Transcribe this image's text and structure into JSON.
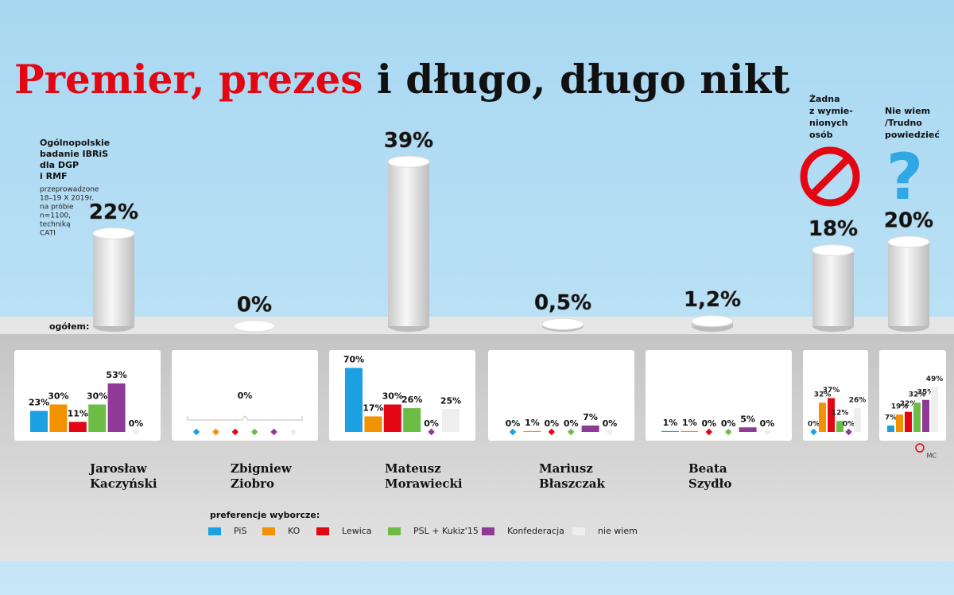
{
  "chart_data": {
    "type": "cylinder-breakdown",
    "title_red": "Premier, prezes",
    "title_black": "i długo, długo nikt",
    "note_bold": [
      "Ogólnopolskie",
      "badanie IBRiS",
      "dla DGP",
      "i RMF"
    ],
    "note_small": [
      "przeprowadzone",
      "18–19 X 2019r.",
      "na próbie",
      "n=1100,",
      "techniką",
      "CATI"
    ],
    "overall_label": "ogółem:",
    "series": [
      {
        "name": "PiS",
        "color": "#1ba1e2"
      },
      {
        "name": "KO",
        "color": "#f39200"
      },
      {
        "name": "Lewica",
        "color": "#e30613"
      },
      {
        "name": "PSL + Kukiz'15",
        "color": "#6cbd45"
      },
      {
        "name": "Konfederacja",
        "color": "#8e3a96"
      },
      {
        "name": "nie wiem",
        "color": "#eeeeee"
      }
    ],
    "legend_title": "preferencje wyborcze:",
    "candidates": [
      {
        "name_lines": [
          "Jarosław",
          "Kaczyński"
        ],
        "overall": 22,
        "overall_label": "22%",
        "values": [
          23,
          30,
          11,
          30,
          53,
          0
        ],
        "value_labels": [
          "23%",
          "30%",
          "11%",
          "30%",
          "53%",
          "0%"
        ]
      },
      {
        "name_lines": [
          "Zbigniew",
          "Ziobro"
        ],
        "overall": 0,
        "overall_label": "0%",
        "values": [
          0,
          0,
          0,
          0,
          0,
          0
        ],
        "summary_label": "0%"
      },
      {
        "name_lines": [
          "Mateusz",
          "Morawiecki"
        ],
        "overall": 39,
        "overall_label": "39%",
        "values": [
          70,
          17,
          30,
          26,
          0,
          25
        ],
        "value_labels": [
          "70%",
          "17%",
          "30%",
          "26%",
          "0%",
          "25%"
        ]
      },
      {
        "name_lines": [
          "Mariusz",
          "Błaszczak"
        ],
        "overall": 0.5,
        "overall_label": "0,5%",
        "values": [
          0,
          1,
          0,
          0,
          7,
          0
        ],
        "value_labels": [
          "0%",
          "1%",
          "0%",
          "0%",
          "7%",
          "0%"
        ]
      },
      {
        "name_lines": [
          "Beata",
          "Szydło"
        ],
        "overall": 1.2,
        "overall_label": "1,2%",
        "values": [
          1,
          1,
          0,
          0,
          5,
          0
        ],
        "value_labels": [
          "1%",
          "1%",
          "0%",
          "0%",
          "5%",
          "0%"
        ]
      },
      {
        "heading_lines": [
          "Żadna",
          "z wymie-",
          "nionych",
          "osób"
        ],
        "overall": 18,
        "overall_label": "18%",
        "values": [
          0,
          32,
          37,
          12,
          0,
          26
        ],
        "value_labels": [
          "0%",
          "32%",
          "37%",
          "12%",
          "0%",
          "26%"
        ]
      },
      {
        "heading_lines": [
          "Nie wiem",
          "/Trudno",
          "powiedzieć"
        ],
        "overall": 20,
        "overall_label": "20%",
        "values": [
          7,
          19,
          22,
          32,
          35,
          49
        ],
        "value_labels": [
          "7%",
          "19%",
          "22%",
          "32%",
          "35%",
          "49%"
        ]
      }
    ],
    "credit": "MC"
  }
}
